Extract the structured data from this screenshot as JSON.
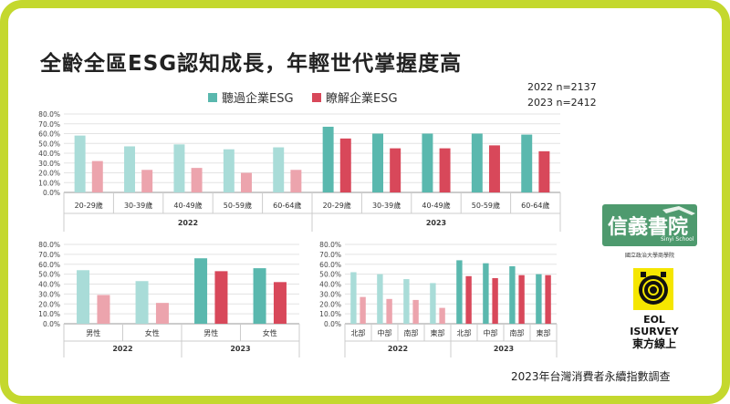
{
  "title": "全齡全區ESG認知成長，年輕世代掌握度高",
  "legend": [
    {
      "label": "聽過企業ESG",
      "color": "#5ab8ae"
    },
    {
      "label": "瞭解企業ESG",
      "color": "#d8485a"
    }
  ],
  "sample_sizes": [
    "2022 n=2137",
    "2023 n=2412"
  ],
  "footer": "2023年台灣消費者永續指數調查",
  "logos": {
    "xinyi": {
      "name": "信義書院",
      "english": "Sinyi School",
      "subtitle": "國立政治大學商學院"
    },
    "eol": {
      "line1": "EOL",
      "line2": "ISURVEY",
      "line3": "東方線上"
    }
  },
  "colors": {
    "heard_2022": "#a9dcd8",
    "know_2022": "#eca4ad",
    "heard_2023": "#5ab8ae",
    "know_2023": "#d8485a"
  },
  "chart_data": [
    {
      "type": "bar",
      "title": "",
      "ylim": [
        0,
        80
      ],
      "yticks": [
        "0.0%",
        "10.0%",
        "20.0%",
        "30.0%",
        "40.0%",
        "50.0%",
        "60.0%",
        "70.0%",
        "80.0%"
      ],
      "groups": [
        {
          "label": "2022",
          "categories": [
            "20-29歲",
            "30-39歲",
            "40-49歲",
            "50-59歲",
            "60-64歲"
          ],
          "series": [
            {
              "name": "聽過企業ESG",
              "values": [
                58,
                47,
                49,
                44,
                46
              ]
            },
            {
              "name": "瞭解企業ESG",
              "values": [
                32,
                23,
                25,
                20,
                23
              ]
            }
          ]
        },
        {
          "label": "2023",
          "categories": [
            "20-29歲",
            "30-39歲",
            "40-49歲",
            "50-59歲",
            "60-64歲"
          ],
          "series": [
            {
              "name": "聽過企業ESG",
              "values": [
                67,
                60,
                60,
                60,
                59
              ]
            },
            {
              "name": "瞭解企業ESG",
              "values": [
                55,
                45,
                45,
                48,
                42
              ]
            }
          ]
        }
      ]
    },
    {
      "type": "bar",
      "title": "",
      "ylim": [
        0,
        80
      ],
      "yticks": [
        "0.0%",
        "10.0%",
        "20.0%",
        "30.0%",
        "40.0%",
        "50.0%",
        "60.0%",
        "70.0%",
        "80.0%"
      ],
      "groups": [
        {
          "label": "2022",
          "categories": [
            "男性",
            "女性"
          ],
          "series": [
            {
              "name": "聽過企業ESG",
              "values": [
                54,
                43
              ]
            },
            {
              "name": "瞭解企業ESG",
              "values": [
                29,
                21
              ]
            }
          ]
        },
        {
          "label": "2023",
          "categories": [
            "男性",
            "女性"
          ],
          "series": [
            {
              "name": "聽過企業ESG",
              "values": [
                66,
                56
              ]
            },
            {
              "name": "瞭解企業ESG",
              "values": [
                53,
                42
              ]
            }
          ]
        }
      ]
    },
    {
      "type": "bar",
      "title": "",
      "ylim": [
        0,
        80
      ],
      "yticks": [
        "0.0%",
        "10.0%",
        "20.0%",
        "30.0%",
        "40.0%",
        "50.0%",
        "60.0%",
        "70.0%",
        "80.0%"
      ],
      "groups": [
        {
          "label": "2022",
          "categories": [
            "北部",
            "中部",
            "南部",
            "東部"
          ],
          "series": [
            {
              "name": "聽過企業ESG",
              "values": [
                52,
                50,
                45,
                41
              ]
            },
            {
              "name": "瞭解企業ESG",
              "values": [
                27,
                25,
                24,
                16
              ]
            }
          ]
        },
        {
          "label": "2023",
          "categories": [
            "北部",
            "中部",
            "南部",
            "東部"
          ],
          "series": [
            {
              "name": "聽過企業ESG",
              "values": [
                64,
                61,
                58,
                50
              ]
            },
            {
              "name": "瞭解企業ESG",
              "values": [
                48,
                46,
                49,
                49
              ]
            }
          ]
        }
      ]
    }
  ]
}
